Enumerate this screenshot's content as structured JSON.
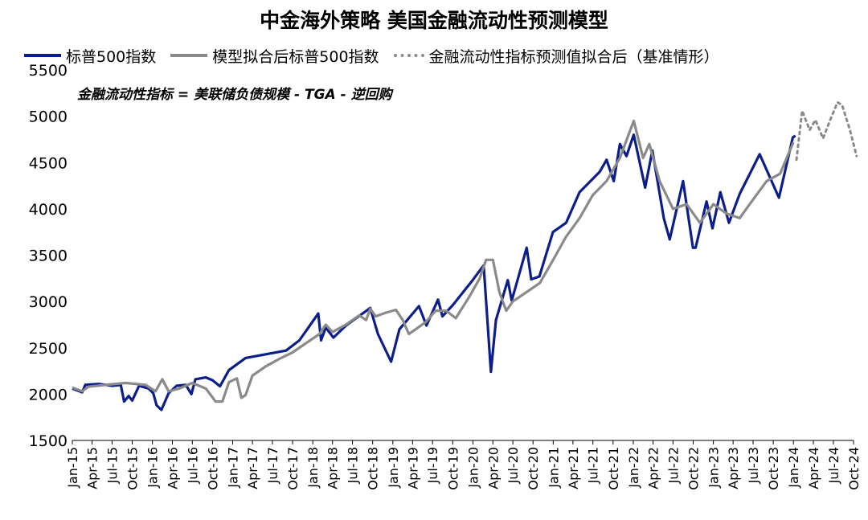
{
  "chart_data": {
    "type": "line",
    "title": "中金海外策略  美国金融流动性预测模型",
    "annotation": "金融流动性指标 = 美联储负债规模 - TGA - 逆回购",
    "ylim": [
      1500,
      5500
    ],
    "yticks": [
      1500,
      2000,
      2500,
      3000,
      3500,
      4000,
      4500,
      5000,
      5500
    ],
    "x_tick_labels": [
      "Jan-15",
      "Apr-15",
      "Jul-15",
      "Oct-15",
      "Jan-16",
      "Apr-16",
      "Jul-16",
      "Oct-16",
      "Jan-17",
      "Apr-17",
      "Jul-17",
      "Oct-17",
      "Jan-18",
      "Apr-18",
      "Jul-18",
      "Oct-18",
      "Jan-19",
      "Apr-19",
      "Jul-19",
      "Oct-19",
      "Jan-20",
      "Apr-20",
      "Jul-20",
      "Oct-20",
      "Jan-21",
      "Apr-21",
      "Jul-21",
      "Oct-21",
      "Jan-22",
      "Apr-22",
      "Jul-22",
      "Oct-22",
      "Jan-23",
      "Apr-23",
      "Jul-23",
      "Oct-23",
      "Jan-24",
      "Apr-24",
      "Jul-24",
      "Oct-24"
    ],
    "legend_position": "top",
    "series": [
      {
        "name": "标普500指数",
        "color": "#0b1e8a",
        "style": "solid",
        "points": [
          [
            "2015-01-01",
            2060
          ],
          [
            "2015-02-15",
            2020
          ],
          [
            "2015-03-01",
            2100
          ],
          [
            "2015-05-01",
            2110
          ],
          [
            "2015-07-01",
            2090
          ],
          [
            "2015-08-10",
            2100
          ],
          [
            "2015-08-25",
            1920
          ],
          [
            "2015-09-15",
            1980
          ],
          [
            "2015-10-01",
            1930
          ],
          [
            "2015-11-01",
            2090
          ],
          [
            "2015-12-15",
            2060
          ],
          [
            "2016-01-05",
            2010
          ],
          [
            "2016-01-20",
            1880
          ],
          [
            "2016-02-11",
            1830
          ],
          [
            "2016-03-15",
            2010
          ],
          [
            "2016-04-20",
            2090
          ],
          [
            "2016-06-01",
            2100
          ],
          [
            "2016-06-27",
            2000
          ],
          [
            "2016-07-15",
            2160
          ],
          [
            "2016-09-01",
            2180
          ],
          [
            "2016-10-01",
            2150
          ],
          [
            "2016-11-04",
            2085
          ],
          [
            "2016-12-15",
            2260
          ],
          [
            "2017-03-01",
            2390
          ],
          [
            "2017-06-01",
            2430
          ],
          [
            "2017-09-01",
            2470
          ],
          [
            "2017-11-01",
            2580
          ],
          [
            "2018-01-26",
            2870
          ],
          [
            "2018-02-08",
            2580
          ],
          [
            "2018-03-01",
            2720
          ],
          [
            "2018-04-05",
            2610
          ],
          [
            "2018-06-01",
            2740
          ],
          [
            "2018-09-20",
            2930
          ],
          [
            "2018-10-25",
            2650
          ],
          [
            "2018-12-24",
            2350
          ],
          [
            "2019-01-31",
            2700
          ],
          [
            "2019-04-30",
            2950
          ],
          [
            "2019-06-03",
            2740
          ],
          [
            "2019-07-26",
            3020
          ],
          [
            "2019-08-15",
            2840
          ],
          [
            "2019-10-01",
            2960
          ],
          [
            "2019-12-31",
            3230
          ],
          [
            "2020-02-19",
            3390
          ],
          [
            "2020-03-23",
            2240
          ],
          [
            "2020-04-15",
            2800
          ],
          [
            "2020-06-08",
            3230
          ],
          [
            "2020-06-26",
            3010
          ],
          [
            "2020-09-02",
            3580
          ],
          [
            "2020-09-23",
            3240
          ],
          [
            "2020-10-30",
            3270
          ],
          [
            "2020-12-31",
            3750
          ],
          [
            "2021-03-01",
            3850
          ],
          [
            "2021-05-01",
            4180
          ],
          [
            "2021-08-01",
            4400
          ],
          [
            "2021-09-01",
            4530
          ],
          [
            "2021-10-04",
            4300
          ],
          [
            "2021-11-01",
            4700
          ],
          [
            "2021-12-01",
            4570
          ],
          [
            "2022-01-03",
            4800
          ],
          [
            "2022-02-24",
            4230
          ],
          [
            "2022-03-29",
            4630
          ],
          [
            "2022-05-20",
            3900
          ],
          [
            "2022-06-16",
            3670
          ],
          [
            "2022-08-16",
            4300
          ],
          [
            "2022-09-30",
            3580
          ],
          [
            "2022-10-12",
            3580
          ],
          [
            "2022-12-01",
            4080
          ],
          [
            "2022-12-28",
            3790
          ],
          [
            "2023-02-02",
            4180
          ],
          [
            "2023-03-13",
            3850
          ],
          [
            "2023-05-01",
            4160
          ],
          [
            "2023-07-31",
            4590
          ],
          [
            "2023-10-27",
            4120
          ],
          [
            "2023-12-29",
            4770
          ],
          [
            "2024-01-10",
            4790
          ]
        ]
      },
      {
        "name": "模型拟合后标普500指数",
        "color": "#8a8a8a",
        "style": "solid",
        "points": [
          [
            "2015-01-01",
            2070
          ],
          [
            "2015-02-15",
            2030
          ],
          [
            "2015-03-15",
            2080
          ],
          [
            "2015-06-01",
            2100
          ],
          [
            "2015-09-01",
            2120
          ],
          [
            "2015-12-01",
            2100
          ],
          [
            "2016-01-15",
            2030
          ],
          [
            "2016-02-15",
            2160
          ],
          [
            "2016-03-15",
            2030
          ],
          [
            "2016-05-01",
            2060
          ],
          [
            "2016-07-01",
            2120
          ],
          [
            "2016-09-01",
            2060
          ],
          [
            "2016-10-15",
            1920
          ],
          [
            "2016-11-15",
            1920
          ],
          [
            "2016-12-15",
            2130
          ],
          [
            "2017-01-20",
            2170
          ],
          [
            "2017-02-10",
            1960
          ],
          [
            "2017-03-01",
            1990
          ],
          [
            "2017-04-01",
            2200
          ],
          [
            "2017-06-01",
            2300
          ],
          [
            "2017-08-01",
            2380
          ],
          [
            "2017-10-01",
            2450
          ],
          [
            "2017-12-01",
            2550
          ],
          [
            "2018-02-01",
            2650
          ],
          [
            "2018-03-01",
            2750
          ],
          [
            "2018-04-01",
            2670
          ],
          [
            "2018-06-01",
            2750
          ],
          [
            "2018-08-01",
            2850
          ],
          [
            "2018-09-01",
            2800
          ],
          [
            "2018-09-20",
            2920
          ],
          [
            "2018-10-15",
            2840
          ],
          [
            "2018-12-01",
            2880
          ],
          [
            "2019-01-15",
            2910
          ],
          [
            "2019-02-15",
            2800
          ],
          [
            "2019-03-15",
            2650
          ],
          [
            "2019-04-15",
            2700
          ],
          [
            "2019-06-01",
            2780
          ],
          [
            "2019-07-15",
            2900
          ],
          [
            "2019-09-01",
            2900
          ],
          [
            "2019-10-15",
            2820
          ],
          [
            "2019-12-15",
            3050
          ],
          [
            "2020-02-01",
            3250
          ],
          [
            "2020-03-01",
            3450
          ],
          [
            "2020-04-01",
            3450
          ],
          [
            "2020-05-01",
            3100
          ],
          [
            "2020-06-01",
            2900
          ],
          [
            "2020-07-01",
            3000
          ],
          [
            "2020-09-01",
            3100
          ],
          [
            "2020-11-01",
            3200
          ],
          [
            "2021-01-01",
            3450
          ],
          [
            "2021-03-01",
            3700
          ],
          [
            "2021-05-01",
            3900
          ],
          [
            "2021-07-01",
            4150
          ],
          [
            "2021-09-01",
            4300
          ],
          [
            "2021-11-01",
            4550
          ],
          [
            "2022-01-03",
            4950
          ],
          [
            "2022-02-15",
            4550
          ],
          [
            "2022-03-15",
            4700
          ],
          [
            "2022-05-01",
            4300
          ],
          [
            "2022-07-01",
            4000
          ],
          [
            "2022-09-01",
            4050
          ],
          [
            "2022-11-01",
            3850
          ],
          [
            "2023-01-01",
            4050
          ],
          [
            "2023-03-01",
            3950
          ],
          [
            "2023-05-01",
            3900
          ],
          [
            "2023-07-01",
            4100
          ],
          [
            "2023-09-01",
            4300
          ],
          [
            "2023-11-01",
            4380
          ],
          [
            "2024-01-01",
            4720
          ]
        ]
      },
      {
        "name": "金融流动性指标预测值拟合后（基准情形）",
        "color": "#8a8a8a",
        "style": "dotted",
        "points": [
          [
            "2024-01-15",
            4530
          ],
          [
            "2024-02-10",
            5060
          ],
          [
            "2024-03-15",
            4850
          ],
          [
            "2024-04-10",
            4960
          ],
          [
            "2024-05-15",
            4760
          ],
          [
            "2024-06-15",
            4950
          ],
          [
            "2024-07-20",
            5150
          ],
          [
            "2024-08-10",
            5120
          ],
          [
            "2024-09-15",
            4850
          ],
          [
            "2024-10-15",
            4570
          ]
        ]
      }
    ]
  }
}
